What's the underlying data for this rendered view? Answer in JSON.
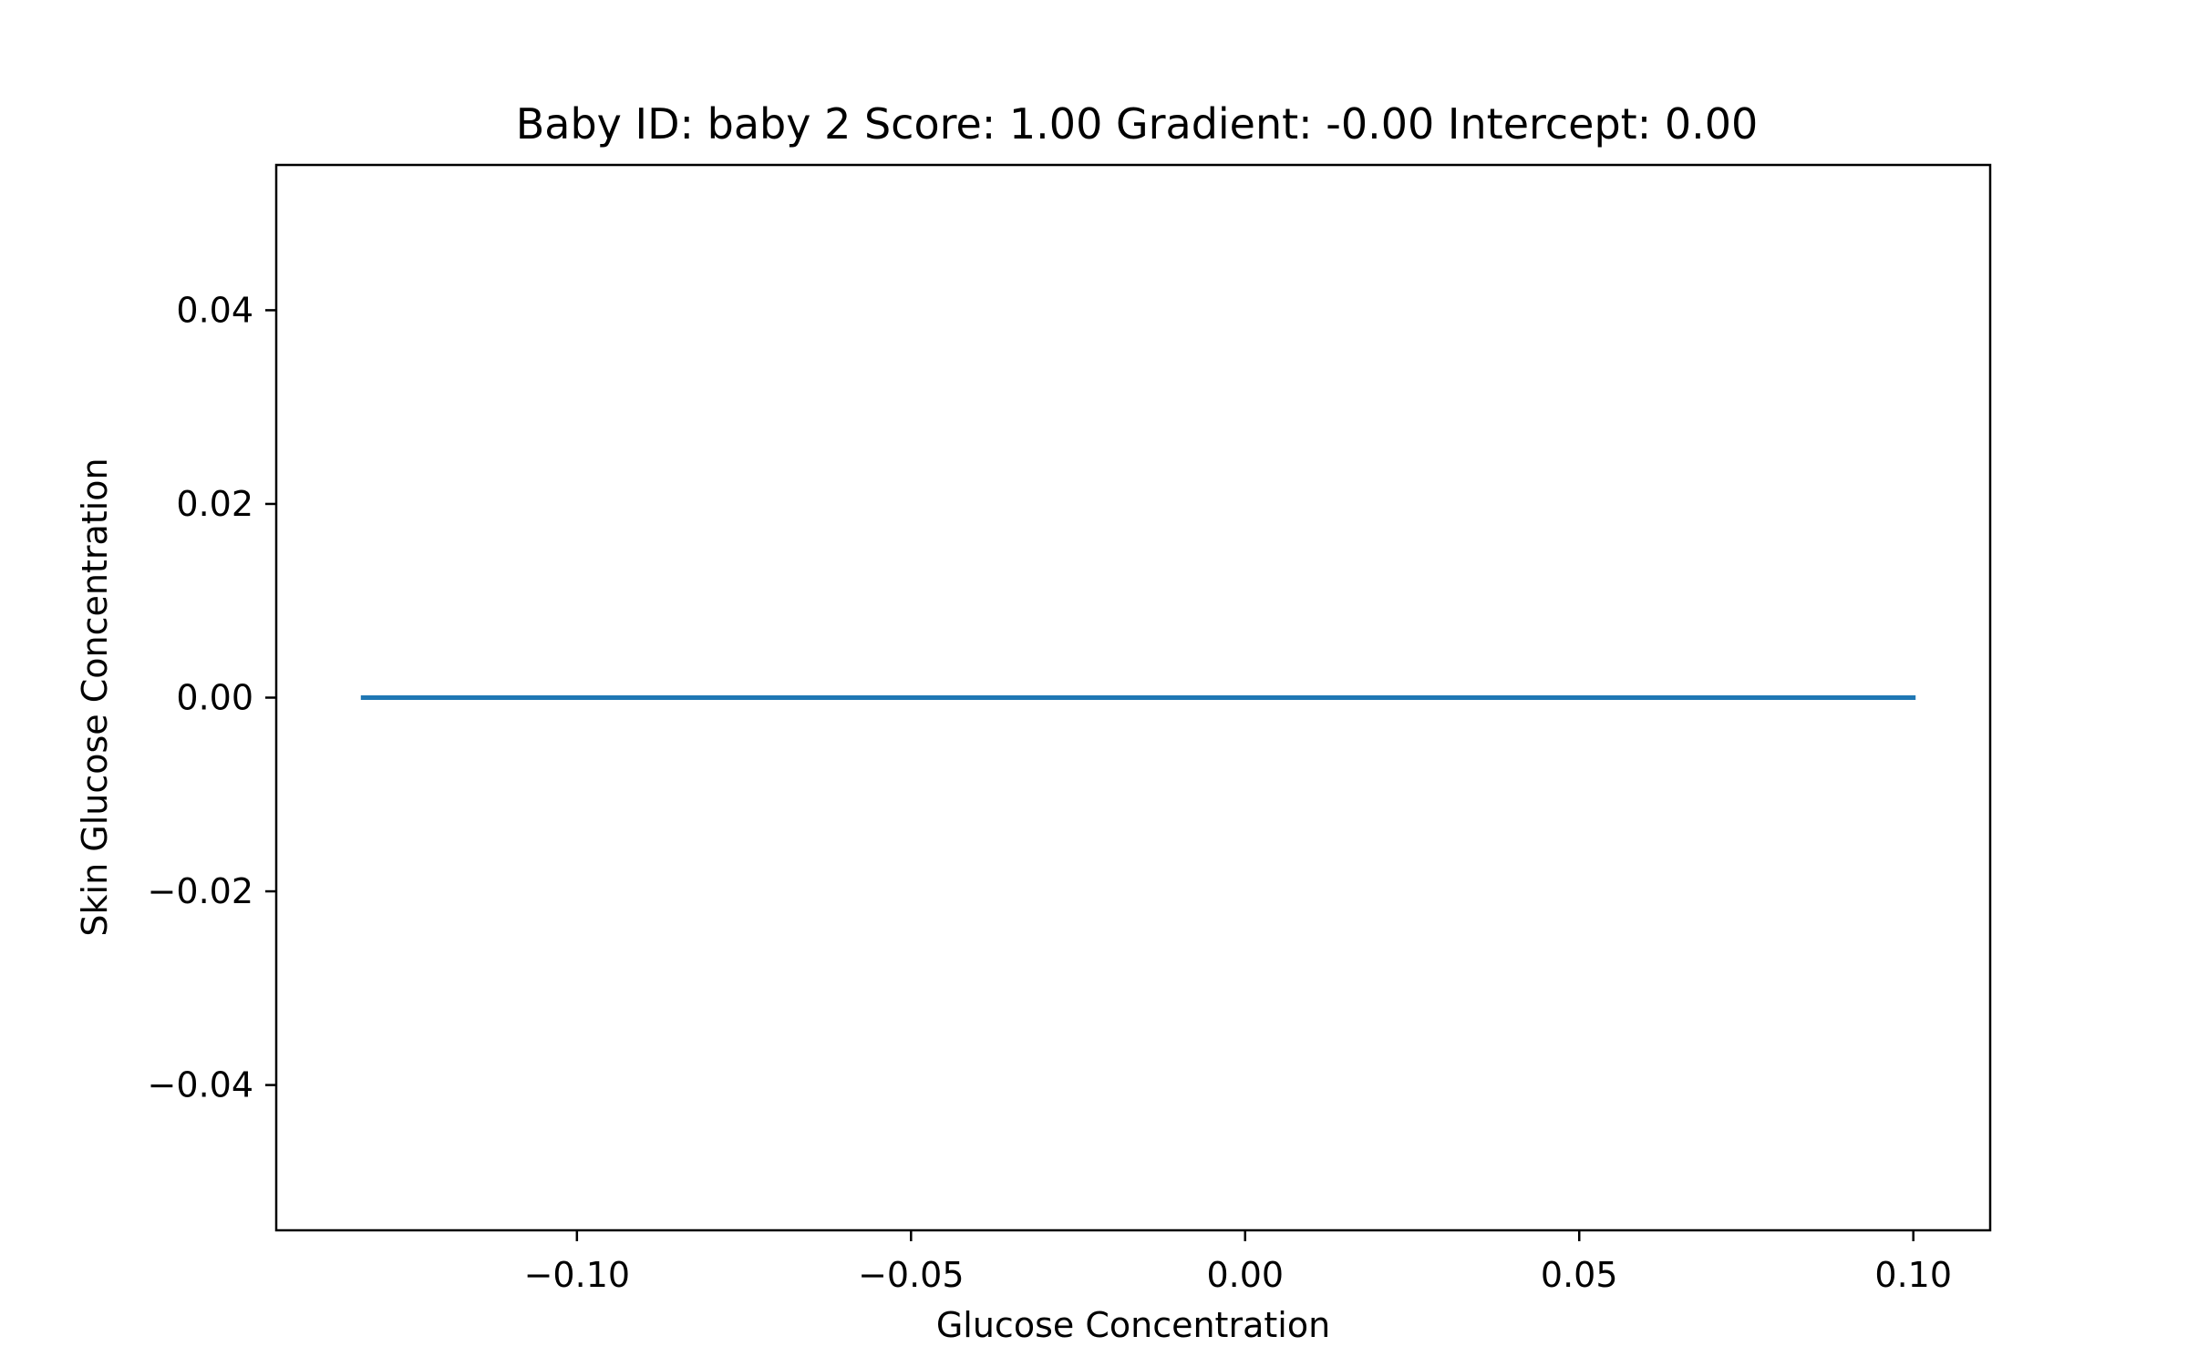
{
  "chart_data": {
    "type": "line",
    "title": "Baby ID: baby 2 Score: 1.00 Gradient: -0.00 Intercept: 0.00",
    "xlabel": "Glucose Concentration",
    "ylabel": "Skin Glucose Concentration",
    "xlim": [
      -0.145,
      0.1115
    ],
    "ylim": [
      -0.055,
      0.055
    ],
    "xticks": [
      -0.1,
      -0.05,
      0.0,
      0.05,
      0.1
    ],
    "xtick_labels": [
      "−0.10",
      "−0.05",
      "0.00",
      "0.05",
      "0.10"
    ],
    "yticks": [
      0.04,
      0.02,
      0.0,
      -0.02,
      -0.04
    ],
    "ytick_labels": [
      "0.04",
      "0.02",
      "0.00",
      "−0.02",
      "−0.04"
    ],
    "grid": false,
    "series": [
      {
        "color": "#1f77b4",
        "x": [
          -0.132,
          0.1
        ],
        "y": [
          0.0,
          0.0
        ]
      }
    ]
  }
}
